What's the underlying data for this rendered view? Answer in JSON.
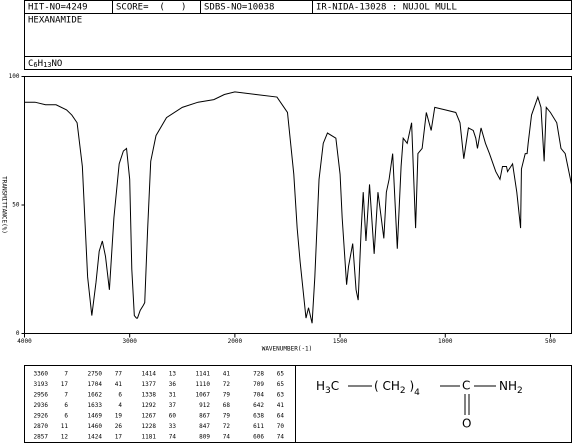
{
  "header": {
    "hit_no": "HIT-NO=4249",
    "score": "SCORE=  (   )",
    "sdbs_no": "SDBS-NO=10038",
    "method": "IR-NIDA-13028 : NUJOL MULL",
    "name": "HEXANAMIDE",
    "formula": [
      "C",
      "6",
      "H",
      "13",
      "NO"
    ]
  },
  "chart_data": {
    "type": "line",
    "x_label": "WAVENUMBER(-1)",
    "y_label": "TRANSMITTANCE(%)",
    "xlim": [
      4000,
      400
    ],
    "x_scale_break": 2000,
    "xticks": [
      4000,
      3000,
      2000,
      1500,
      1000,
      500
    ],
    "ylim": [
      0,
      100
    ],
    "yticks": [
      0,
      50,
      100
    ],
    "x": [
      4000,
      3900,
      3800,
      3700,
      3600,
      3550,
      3500,
      3450,
      3400,
      3360,
      3320,
      3290,
      3260,
      3230,
      3193,
      3150,
      3100,
      3060,
      3030,
      3000,
      2980,
      2956,
      2936,
      2926,
      2900,
      2870,
      2857,
      2830,
      2800,
      2750,
      2650,
      2500,
      2350,
      2200,
      2100,
      2000,
      1900,
      1800,
      1750,
      1720,
      1704,
      1690,
      1662,
      1650,
      1633,
      1620,
      1600,
      1580,
      1560,
      1520,
      1500,
      1490,
      1469,
      1460,
      1440,
      1424,
      1414,
      1400,
      1390,
      1377,
      1360,
      1338,
      1320,
      1292,
      1280,
      1267,
      1250,
      1228,
      1210,
      1200,
      1181,
      1160,
      1141,
      1130,
      1110,
      1090,
      1067,
      1050,
      1000,
      950,
      930,
      912,
      890,
      867,
      855,
      847,
      830,
      809,
      790,
      760,
      740,
      728,
      709,
      704,
      680,
      660,
      642,
      638,
      620,
      611,
      606,
      590,
      560,
      545,
      530,
      520,
      500,
      470,
      450,
      430,
      400
    ],
    "series": [
      {
        "color": "#000000",
        "values": [
          90,
          90,
          89,
          89,
          87,
          85,
          82,
          65,
          22,
          7,
          20,
          32,
          36,
          30,
          17,
          45,
          66,
          71,
          72,
          60,
          25,
          7,
          6,
          6,
          9,
          11,
          12,
          40,
          67,
          77,
          84,
          88,
          90,
          91,
          93,
          94,
          93,
          92,
          86,
          62,
          41,
          28,
          6,
          10,
          4,
          22,
          60,
          74,
          78,
          76,
          62,
          45,
          19,
          26,
          35,
          17,
          13,
          40,
          55,
          36,
          58,
          31,
          55,
          37,
          55,
          60,
          70,
          33,
          65,
          76,
          74,
          82,
          41,
          70,
          72,
          86,
          79,
          88,
          87,
          86,
          82,
          68,
          80,
          79,
          76,
          72,
          80,
          74,
          70,
          63,
          60,
          65,
          65,
          63,
          66,
          55,
          41,
          64,
          70,
          70,
          74,
          85,
          92,
          88,
          67,
          88,
          86,
          82,
          72,
          70,
          58
        ]
      }
    ]
  },
  "peak_table": [
    [
      [
        3360,
        7
      ],
      [
        3193,
        17
      ],
      [
        2956,
        7
      ],
      [
        2936,
        6
      ],
      [
        2926,
        6
      ],
      [
        2870,
        11
      ],
      [
        2857,
        12
      ]
    ],
    [
      [
        2750,
        77
      ],
      [
        1704,
        41
      ],
      [
        1662,
        6
      ],
      [
        1633,
        4
      ],
      [
        1469,
        19
      ],
      [
        1460,
        26
      ],
      [
        1424,
        17
      ]
    ],
    [
      [
        1414,
        13
      ],
      [
        1377,
        36
      ],
      [
        1338,
        31
      ],
      [
        1292,
        37
      ],
      [
        1267,
        60
      ],
      [
        1228,
        33
      ],
      [
        1181,
        74
      ]
    ],
    [
      [
        1141,
        41
      ],
      [
        1110,
        72
      ],
      [
        1067,
        79
      ],
      [
        912,
        68
      ],
      [
        867,
        79
      ],
      [
        847,
        72
      ],
      [
        809,
        74
      ]
    ],
    [
      [
        728,
        65
      ],
      [
        709,
        65
      ],
      [
        704,
        63
      ],
      [
        642,
        41
      ],
      [
        638,
        64
      ],
      [
        611,
        70
      ],
      [
        606,
        74
      ]
    ]
  ],
  "structure": {
    "methyl": [
      "H",
      "3",
      "C"
    ],
    "chain": [
      "( CH",
      "2",
      " )",
      "4"
    ],
    "carbon": "C",
    "amine": [
      "NH",
      "2"
    ],
    "oxygen": "O"
  }
}
